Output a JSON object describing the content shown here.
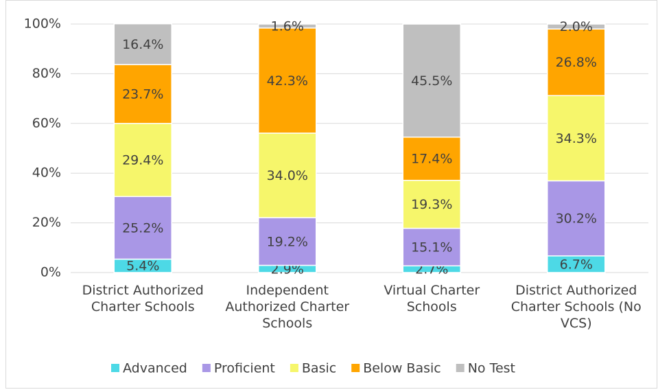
{
  "chart_data": {
    "type": "stacked_bar",
    "categories": [
      "District Authorized Charter Schools",
      "Independent Authorized Charter Schools",
      "Virtual Charter Schools",
      "District Authorized Charter Schools (No VCS)"
    ],
    "series": [
      {
        "name": "Advanced",
        "color": "#4dd9e6",
        "values": [
          5.4,
          2.9,
          2.7,
          6.7
        ],
        "value_labels": [
          "5.4%",
          "2.9%",
          "2.7%",
          "6.7%"
        ]
      },
      {
        "name": "Proficient",
        "color": "#a997e6",
        "values": [
          25.2,
          19.2,
          15.1,
          30.2
        ],
        "value_labels": [
          "25.2%",
          "19.2%",
          "15.1%",
          "30.2%"
        ]
      },
      {
        "name": "Basic",
        "color": "#f6f66b",
        "values": [
          29.4,
          34.0,
          19.3,
          34.3
        ],
        "value_labels": [
          "29.4%",
          "34.0%",
          "19.3%",
          "34.3%"
        ]
      },
      {
        "name": "Below Basic",
        "color": "#ffa500",
        "values": [
          23.7,
          42.3,
          17.4,
          26.8
        ],
        "value_labels": [
          "23.7%",
          "42.3%",
          "17.4%",
          "26.8%"
        ]
      },
      {
        "name": "No Test",
        "color": "#bfbfbf",
        "values": [
          16.4,
          1.6,
          45.5,
          2.0
        ],
        "value_labels": [
          "16.4%",
          "1.6%",
          "45.5%",
          "2.0%"
        ]
      }
    ],
    "ylim": [
      0,
      100
    ],
    "yticks": [
      {
        "value": 0,
        "label": "0%"
      },
      {
        "value": 20,
        "label": "20%"
      },
      {
        "value": 40,
        "label": "40%"
      },
      {
        "value": 60,
        "label": "60%"
      },
      {
        "value": 80,
        "label": "80%"
      },
      {
        "value": 100,
        "label": "100%"
      }
    ],
    "grid": true,
    "legend": "bottom"
  }
}
